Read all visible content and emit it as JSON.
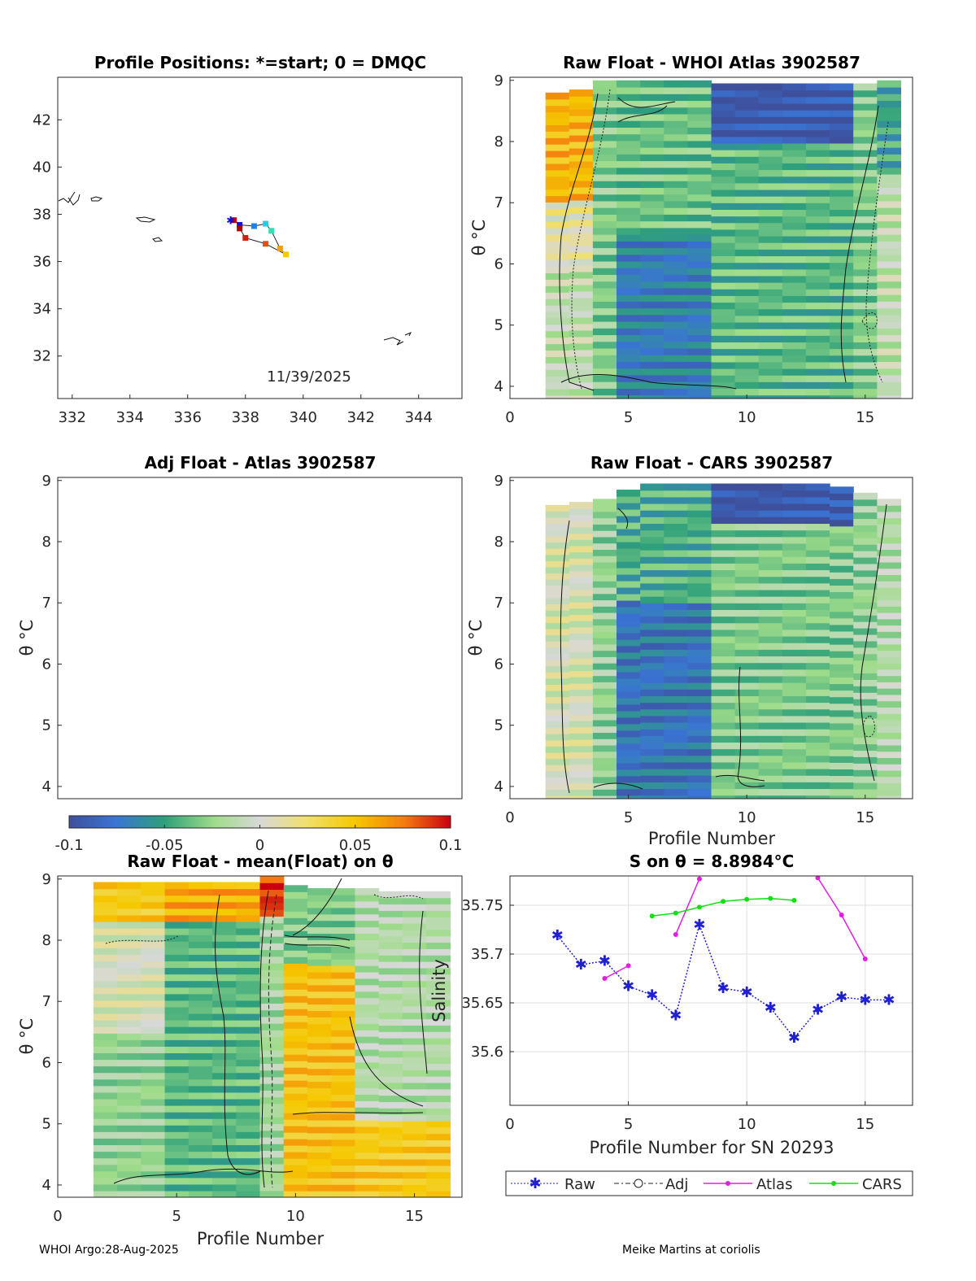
{
  "footer": {
    "left": "WHOI Argo:28-Aug-2025",
    "right": "Meike Martins at coriolis"
  },
  "chart_data": [
    {
      "id": "positions",
      "type": "scatter",
      "title": "Profile Positions: *=start; 0 = DMQC",
      "xlim": [
        331.5,
        345.5
      ],
      "ylim": [
        30.2,
        43.8
      ],
      "xticks": [
        "332",
        "334",
        "336",
        "338",
        "340",
        "342",
        "344"
      ],
      "yticks": [
        "32",
        "34",
        "36",
        "38",
        "40",
        "42"
      ],
      "date_label": "11/39/2025",
      "track": [
        {
          "lon": 337.6,
          "lat": 37.75,
          "color": "#c00000"
        },
        {
          "lon": 337.8,
          "lat": 37.55,
          "color": "#1010d0"
        },
        {
          "lon": 338.3,
          "lat": 37.5,
          "color": "#2080f0"
        },
        {
          "lon": 338.7,
          "lat": 37.6,
          "color": "#20d0e0"
        },
        {
          "lon": 338.9,
          "lat": 37.3,
          "color": "#30e0b0"
        },
        {
          "lon": 339.2,
          "lat": 36.55,
          "color": "#f0a000"
        },
        {
          "lon": 339.4,
          "lat": 36.3,
          "color": "#f8c800"
        },
        {
          "lon": 338.7,
          "lat": 36.75,
          "color": "#e05010"
        },
        {
          "lon": 338.0,
          "lat": 37.0,
          "color": "#d02010"
        },
        {
          "lon": 337.8,
          "lat": 37.4,
          "color": "#b00000"
        }
      ]
    },
    {
      "id": "raw-atlas",
      "type": "heatmap",
      "title": "Raw Float - WHOI Atlas  3902587",
      "ylabel": "θ °C",
      "xlim": [
        0,
        17
      ],
      "ylim": [
        3.8,
        9.05
      ],
      "xticks": [
        "0",
        "5",
        "10",
        "15"
      ],
      "yticks": [
        "4",
        "5",
        "6",
        "7",
        "8",
        "9"
      ]
    },
    {
      "id": "adj-atlas",
      "type": "heatmap",
      "title": "Adj Float - Atlas  3902587",
      "ylabel": "θ °C",
      "ylim": [
        3.8,
        9.05
      ],
      "yticks": [
        "4",
        "5",
        "6",
        "7",
        "8",
        "9"
      ]
    },
    {
      "id": "raw-cars",
      "type": "heatmap",
      "title": "Raw Float - CARS  3902587",
      "ylabel": "θ °C",
      "xlabel": "Profile Number",
      "xlim": [
        0,
        17
      ],
      "ylim": [
        3.8,
        9.05
      ],
      "xticks": [
        "0",
        "5",
        "10",
        "15"
      ],
      "yticks": [
        "4",
        "5",
        "6",
        "7",
        "8",
        "9"
      ]
    },
    {
      "id": "colorbar",
      "type": "heatmap",
      "range": [
        -0.1,
        0.1
      ],
      "ticks": [
        "-0.1",
        "-0.05",
        "0",
        "0.05",
        "0.1"
      ]
    },
    {
      "id": "raw-mean",
      "type": "heatmap",
      "title": "Raw Float - mean(Float) on θ",
      "ylabel": "θ °C",
      "xlabel": "Profile Number",
      "xlim": [
        0,
        17
      ],
      "ylim": [
        3.8,
        9.05
      ],
      "xticks": [
        "0",
        "5",
        "10",
        "15"
      ],
      "yticks": [
        "4",
        "5",
        "6",
        "7",
        "8",
        "9"
      ]
    },
    {
      "id": "salinity",
      "type": "line",
      "title": "S on θ = 8.8984°C",
      "xlabel": "Profile Number for SN 20293",
      "ylabel": "Salinity",
      "xlim": [
        0,
        17
      ],
      "ylim": [
        35.545,
        35.78
      ],
      "xticks": [
        "0",
        "5",
        "10",
        "15"
      ],
      "yticks": [
        "35.6",
        "35.65",
        "35.7",
        "35.75"
      ],
      "series": [
        {
          "name": "Raw",
          "color": "#2020d0",
          "points": [
            [
              2,
              35.719
            ],
            [
              3,
              35.689
            ],
            [
              4,
              35.693
            ],
            [
              5,
              35.667
            ],
            [
              6,
              35.658
            ],
            [
              7,
              35.637
            ],
            [
              8,
              35.73
            ],
            [
              9,
              35.665
            ],
            [
              10,
              35.661
            ],
            [
              11,
              35.645
            ],
            [
              12,
              35.614
            ],
            [
              13,
              35.643
            ],
            [
              14,
              35.656
            ],
            [
              15,
              35.653
            ],
            [
              16,
              35.653
            ]
          ]
        },
        {
          "name": "Atlas",
          "color": "#e020e0",
          "segments": [
            [
              [
                4,
                35.675
              ],
              [
                5,
                35.688
              ]
            ],
            [
              [
                7,
                35.72
              ],
              [
                8,
                35.777
              ]
            ],
            [
              [
                13,
                35.778
              ],
              [
                14,
                35.74
              ],
              [
                15,
                35.695
              ]
            ]
          ]
        },
        {
          "name": "CARS",
          "color": "#10e010",
          "points": [
            [
              6,
              35.739
            ],
            [
              7,
              35.742
            ],
            [
              8,
              35.748
            ],
            [
              9,
              35.754
            ],
            [
              10,
              35.756
            ],
            [
              11,
              35.757
            ],
            [
              12,
              35.755
            ]
          ]
        }
      ],
      "legend": [
        "Raw",
        "Adj",
        "Atlas",
        "CARS"
      ]
    }
  ]
}
